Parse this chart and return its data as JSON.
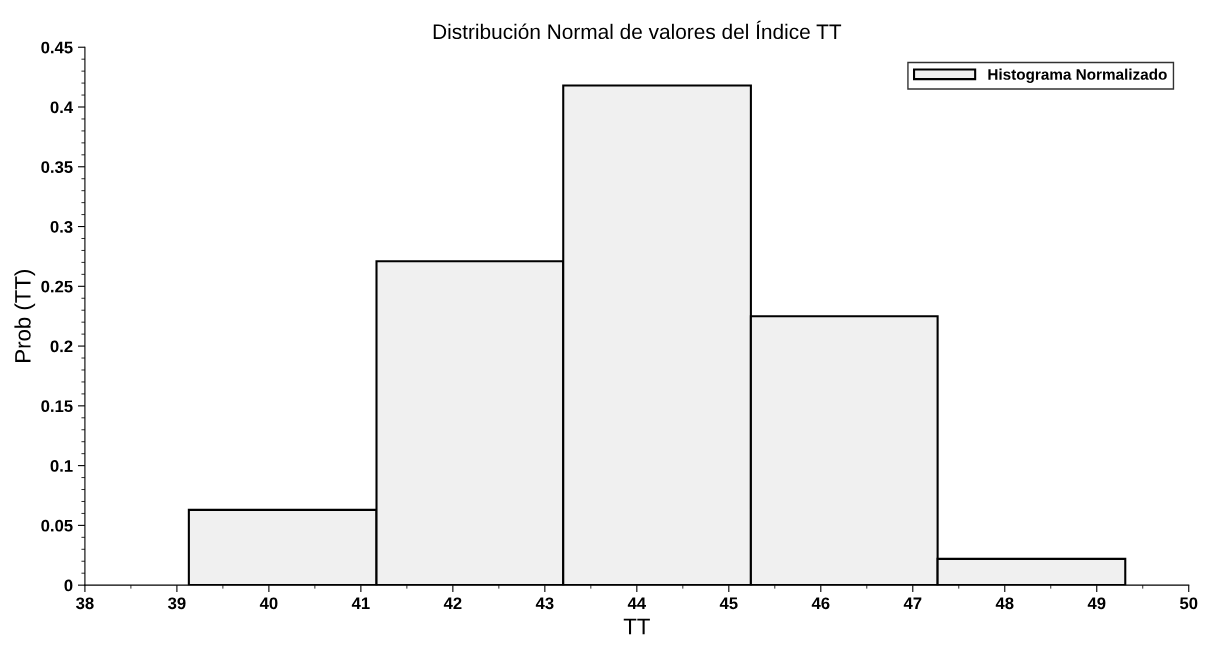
{
  "chart_data": {
    "type": "histogram",
    "title": "Distribución Normal de valores del Índice TT",
    "xlabel": "TT",
    "ylabel": "Prob (TT)",
    "bins": [
      39.13,
      41.17,
      43.2,
      45.24,
      47.27,
      49.31
    ],
    "series": [
      {
        "name": "Histograma Normalizado",
        "color": "#f0f0f0",
        "values": [
          0.063,
          0.271,
          0.418,
          0.225,
          0.022
        ]
      }
    ],
    "xlim": [
      38,
      50
    ],
    "xticks": [
      38,
      39,
      40,
      41,
      42,
      43,
      44,
      45,
      46,
      47,
      48,
      49,
      50
    ],
    "ylim": [
      0,
      0.45
    ],
    "yticks": [
      {
        "value": 0,
        "label": "0"
      },
      0.05,
      0.1,
      0.15,
      0.2,
      0.25,
      0.3,
      0.35,
      0.4,
      0.45
    ],
    "grid": false,
    "legend": "top right"
  }
}
